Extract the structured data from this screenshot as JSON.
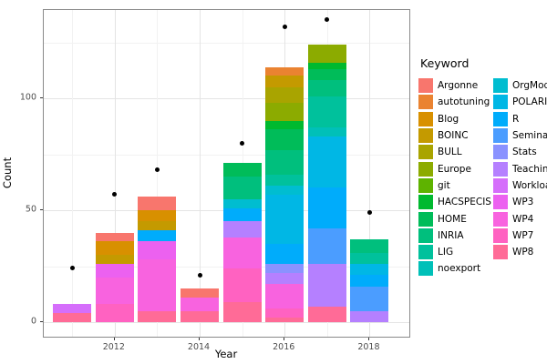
{
  "chart_data": {
    "type": "bar",
    "stacked": true,
    "xlabel": "Year",
    "ylabel": "Count",
    "legend_title": "Keyword",
    "x_ticks": [
      2012,
      2014,
      2016,
      2018
    ],
    "x_minor": [
      2011,
      2013,
      2015,
      2017
    ],
    "y_ticks": [
      0,
      50,
      100
    ],
    "y_minor": [
      25,
      75,
      125
    ],
    "xlim": [
      2010.33,
      2018.97
    ],
    "ylim": [
      -7.3,
      139.4
    ],
    "grid": true,
    "legend_position": "right",
    "point_color": "#000000",
    "keywords": [
      {
        "name": "Argonne",
        "color": "#F8766D"
      },
      {
        "name": "autotuning",
        "color": "#EA8331"
      },
      {
        "name": "Blog",
        "color": "#D89000"
      },
      {
        "name": "BOINC",
        "color": "#C49A00"
      },
      {
        "name": "BULL",
        "color": "#A9A400"
      },
      {
        "name": "Europe",
        "color": "#8CAB00"
      },
      {
        "name": "git",
        "color": "#5EB300"
      },
      {
        "name": "HACSPECIS",
        "color": "#00B92F"
      },
      {
        "name": "HOME",
        "color": "#00BC59"
      },
      {
        "name": "INRIA",
        "color": "#00BF7D"
      },
      {
        "name": "LIG",
        "color": "#00C19C"
      },
      {
        "name": "noexport",
        "color": "#00C0B8"
      },
      {
        "name": "OrgMode",
        "color": "#00BDD0"
      },
      {
        "name": "POLARIS",
        "color": "#00B7E5"
      },
      {
        "name": "R",
        "color": "#00ACFB"
      },
      {
        "name": "Seminar",
        "color": "#4B9DFF"
      },
      {
        "name": "Stats",
        "color": "#8A92FF"
      },
      {
        "name": "Teaching",
        "color": "#B580FF"
      },
      {
        "name": "Workload",
        "color": "#D56EFB"
      },
      {
        "name": "WP3",
        "color": "#EC61F0"
      },
      {
        "name": "WP4",
        "color": "#F863DF"
      },
      {
        "name": "WP7",
        "color": "#FF62C1"
      },
      {
        "name": "WP8",
        "color": "#FF6B97"
      }
    ],
    "bars": [
      {
        "year": 2011,
        "total": 8,
        "segments": [
          {
            "keyword": "Workload",
            "value": 4
          },
          {
            "keyword": "WP8",
            "value": 4
          }
        ]
      },
      {
        "year": 2012,
        "total": 40,
        "segments": [
          {
            "keyword": "Argonne",
            "value": 4
          },
          {
            "keyword": "Blog",
            "value": 6
          },
          {
            "keyword": "BOINC",
            "value": 4
          },
          {
            "keyword": "WP3",
            "value": 6
          },
          {
            "keyword": "WP4",
            "value": 12
          },
          {
            "keyword": "WP7",
            "value": 8
          }
        ]
      },
      {
        "year": 2013,
        "total": 56,
        "segments": [
          {
            "keyword": "Argonne",
            "value": 6
          },
          {
            "keyword": "Blog",
            "value": 5
          },
          {
            "keyword": "BOINC",
            "value": 4
          },
          {
            "keyword": "R",
            "value": 5
          },
          {
            "keyword": "WP3",
            "value": 8
          },
          {
            "keyword": "WP4",
            "value": 23
          },
          {
            "keyword": "WP8",
            "value": 5
          }
        ]
      },
      {
        "year": 2014,
        "total": 15,
        "segments": [
          {
            "keyword": "Argonne",
            "value": 4
          },
          {
            "keyword": "WP4",
            "value": 6
          },
          {
            "keyword": "WP8",
            "value": 5
          }
        ]
      },
      {
        "year": 2015,
        "total": 71,
        "segments": [
          {
            "keyword": "HOME",
            "value": 6
          },
          {
            "keyword": "INRIA",
            "value": 10
          },
          {
            "keyword": "OrgMode",
            "value": 4
          },
          {
            "keyword": "R",
            "value": 6
          },
          {
            "keyword": "Teaching",
            "value": 7
          },
          {
            "keyword": "WP4",
            "value": 14
          },
          {
            "keyword": "WP7",
            "value": 15
          },
          {
            "keyword": "WP8",
            "value": 9
          }
        ]
      },
      {
        "year": 2016,
        "total": 114,
        "segments": [
          {
            "keyword": "autotuning",
            "value": 4
          },
          {
            "keyword": "BOINC",
            "value": 5
          },
          {
            "keyword": "BULL",
            "value": 7
          },
          {
            "keyword": "Europe",
            "value": 8
          },
          {
            "keyword": "HACSPECIS",
            "value": 4
          },
          {
            "keyword": "HOME",
            "value": 9
          },
          {
            "keyword": "INRIA",
            "value": 11
          },
          {
            "keyword": "LIG",
            "value": 5
          },
          {
            "keyword": "OrgMode",
            "value": 4
          },
          {
            "keyword": "POLARIS",
            "value": 22
          },
          {
            "keyword": "R",
            "value": 9
          },
          {
            "keyword": "Stats",
            "value": 4
          },
          {
            "keyword": "Teaching",
            "value": 5
          },
          {
            "keyword": "WP4",
            "value": 11
          },
          {
            "keyword": "WP7",
            "value": 4
          },
          {
            "keyword": "WP8",
            "value": 2
          }
        ]
      },
      {
        "year": 2017,
        "total": 124,
        "segments": [
          {
            "keyword": "Europe",
            "value": 8
          },
          {
            "keyword": "HACSPECIS",
            "value": 3
          },
          {
            "keyword": "HOME",
            "value": 5
          },
          {
            "keyword": "INRIA",
            "value": 7
          },
          {
            "keyword": "LIG",
            "value": 14
          },
          {
            "keyword": "noexport",
            "value": 4
          },
          {
            "keyword": "POLARIS",
            "value": 23
          },
          {
            "keyword": "R",
            "value": 18
          },
          {
            "keyword": "Seminar",
            "value": 16
          },
          {
            "keyword": "Teaching",
            "value": 19
          },
          {
            "keyword": "WP8",
            "value": 7
          }
        ]
      },
      {
        "year": 2018,
        "total": 37,
        "segments": [
          {
            "keyword": "INRIA",
            "value": 6
          },
          {
            "keyword": "LIG",
            "value": 5
          },
          {
            "keyword": "POLARIS",
            "value": 5
          },
          {
            "keyword": "R",
            "value": 5
          },
          {
            "keyword": "Seminar",
            "value": 11
          },
          {
            "keyword": "Teaching",
            "value": 5
          }
        ]
      }
    ],
    "points": [
      {
        "year": 2011,
        "value": 24
      },
      {
        "year": 2012,
        "value": 57
      },
      {
        "year": 2013,
        "value": 68
      },
      {
        "year": 2014,
        "value": 21
      },
      {
        "year": 2015,
        "value": 80
      },
      {
        "year": 2016,
        "value": 132
      },
      {
        "year": 2017,
        "value": 135
      },
      {
        "year": 2018,
        "value": 49
      }
    ]
  }
}
